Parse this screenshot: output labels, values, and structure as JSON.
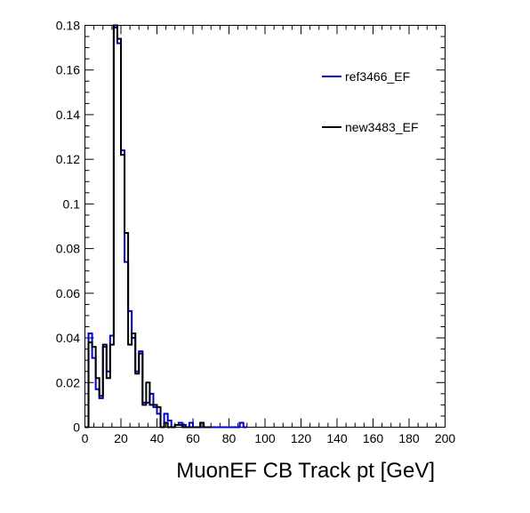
{
  "chart_data": {
    "type": "step-histogram",
    "xlabel": "MuonEF CB Track pt [GeV]",
    "ylabel": "",
    "xlim": [
      0,
      200
    ],
    "ylim": [
      0,
      0.18
    ],
    "x_ticks": [
      0,
      20,
      40,
      60,
      80,
      100,
      120,
      140,
      160,
      180,
      200
    ],
    "y_ticks": [
      0,
      0.02,
      0.04,
      0.06,
      0.08,
      0.1,
      0.12,
      0.14,
      0.16,
      0.18
    ],
    "x_tick_labels": [
      "0",
      "20",
      "40",
      "60",
      "80",
      "100",
      "120",
      "140",
      "160",
      "180",
      "200"
    ],
    "y_tick_labels": [
      "0",
      "0.02",
      "0.04",
      "0.06",
      "0.08",
      "0.1",
      "0.12",
      "0.14",
      "0.16",
      "0.18"
    ],
    "bin_width": 2,
    "grid": false,
    "legend_position": "top-right",
    "series": [
      {
        "name": "ref3466_EF",
        "color": "#0000cc",
        "bins": [
          [
            0,
            0.0
          ],
          [
            2,
            0.042
          ],
          [
            4,
            0.031
          ],
          [
            6,
            0.017
          ],
          [
            8,
            0.013
          ],
          [
            10,
            0.036
          ],
          [
            12,
            0.025
          ],
          [
            14,
            0.041
          ],
          [
            16,
            0.179
          ],
          [
            18,
            0.172
          ],
          [
            20,
            0.124
          ],
          [
            22,
            0.074
          ],
          [
            24,
            0.052
          ],
          [
            26,
            0.04
          ],
          [
            28,
            0.025
          ],
          [
            30,
            0.034
          ],
          [
            32,
            0.011
          ],
          [
            34,
            0.011
          ],
          [
            36,
            0.015
          ],
          [
            38,
            0.009
          ],
          [
            40,
            0.006
          ],
          [
            42,
            0.0
          ],
          [
            44,
            0.006
          ],
          [
            46,
            0.003
          ],
          [
            48,
            0.0
          ],
          [
            50,
            0.001
          ],
          [
            52,
            0.002
          ],
          [
            54,
            0.001
          ],
          [
            56,
            0.0
          ],
          [
            58,
            0.002
          ],
          [
            60,
            0.0
          ],
          [
            62,
            0.0
          ],
          [
            64,
            0.0
          ],
          [
            66,
            0.0
          ],
          [
            68,
            0.0
          ],
          [
            70,
            0.0
          ],
          [
            72,
            0.0
          ],
          [
            74,
            0.0
          ],
          [
            76,
            0.0
          ],
          [
            78,
            0.0
          ],
          [
            80,
            0.0
          ],
          [
            82,
            0.0
          ],
          [
            84,
            0.0
          ],
          [
            86,
            0.002
          ],
          [
            88,
            0.0
          ]
        ]
      },
      {
        "name": "new3483_EF",
        "color": "#000000",
        "bins": [
          [
            0,
            0.0
          ],
          [
            2,
            0.038
          ],
          [
            4,
            0.036
          ],
          [
            6,
            0.022
          ],
          [
            8,
            0.014
          ],
          [
            10,
            0.037
          ],
          [
            12,
            0.022
          ],
          [
            14,
            0.037
          ],
          [
            16,
            0.18
          ],
          [
            18,
            0.174
          ],
          [
            20,
            0.122
          ],
          [
            22,
            0.087
          ],
          [
            24,
            0.037
          ],
          [
            26,
            0.042
          ],
          [
            28,
            0.024
          ],
          [
            30,
            0.033
          ],
          [
            32,
            0.01
          ],
          [
            34,
            0.02
          ],
          [
            36,
            0.01
          ],
          [
            38,
            0.01
          ],
          [
            40,
            0.009
          ],
          [
            42,
            0.0
          ],
          [
            44,
            0.002
          ],
          [
            46,
            0.0
          ],
          [
            48,
            0.0
          ],
          [
            50,
            0.001
          ],
          [
            52,
            0.001
          ],
          [
            54,
            0.0
          ],
          [
            56,
            0.0
          ],
          [
            58,
            0.0
          ],
          [
            60,
            0.0
          ],
          [
            62,
            0.0
          ],
          [
            64,
            0.002
          ],
          [
            66,
            0.0
          ],
          [
            68,
            0.0
          ]
        ]
      }
    ]
  }
}
